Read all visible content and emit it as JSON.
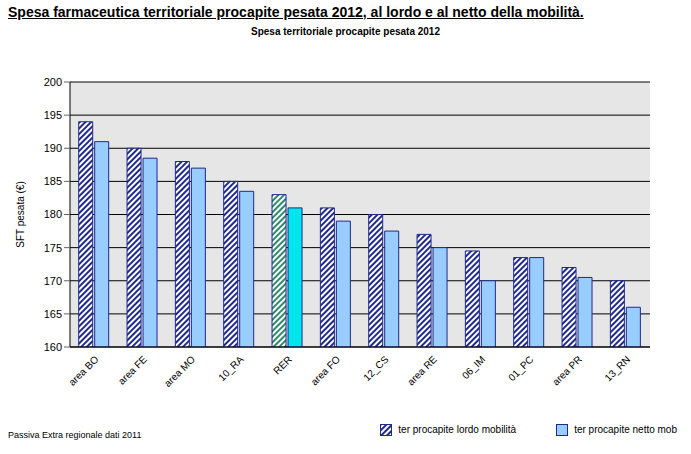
{
  "chart_data": {
    "type": "bar",
    "title": "Spesa farmaceutica territoriale procapite pesata 2012, al lordo e al netto della mobilità.",
    "subtitle": "Spesa territoriale procapite pesata 2012",
    "y_label": "SFT pesata (€)",
    "annotations": [
      "Passiva Extra regionale dati 2011"
    ],
    "categories": [
      "area BO",
      "area FE",
      "area MO",
      "10_RA",
      "RER",
      "area FO",
      "12_CS",
      "area RE",
      "06_IM",
      "01_PC",
      "area PR",
      "13_RN"
    ],
    "series": [
      {
        "name": "ter procapite lordo mobilità",
        "color": "#1f2a8c",
        "colors": [
          "#1f2a8c",
          "#1f2a8c",
          "#1f2a8c",
          "#1f2a8c",
          "#2e8b6a",
          "#1f2a8c",
          "#1f2a8c",
          "#1f2a8c",
          "#1f2a8c",
          "#1f2a8c",
          "#1f2a8c",
          "#1f2a8c"
        ],
        "values": [
          194,
          190,
          188,
          185,
          183,
          181,
          180,
          177,
          174.5,
          173.5,
          172,
          170
        ]
      },
      {
        "name": "ter procapite netto mob",
        "color": "#99ccff",
        "colors": [
          "#99ccff",
          "#99ccff",
          "#99ccff",
          "#99ccff",
          "#00e5ee",
          "#99ccff",
          "#99ccff",
          "#99ccff",
          "#99ccff",
          "#99ccff",
          "#99ccff",
          "#99ccff"
        ],
        "values": [
          191,
          188.5,
          187,
          183.5,
          181,
          179,
          177.5,
          175,
          170,
          173.5,
          170.5,
          166
        ]
      }
    ],
    "ylim": [
      160,
      200
    ],
    "yticks": [
      160,
      165,
      170,
      175,
      180,
      185,
      190,
      195,
      200
    ],
    "grid": true,
    "legend": "bottom-right"
  }
}
